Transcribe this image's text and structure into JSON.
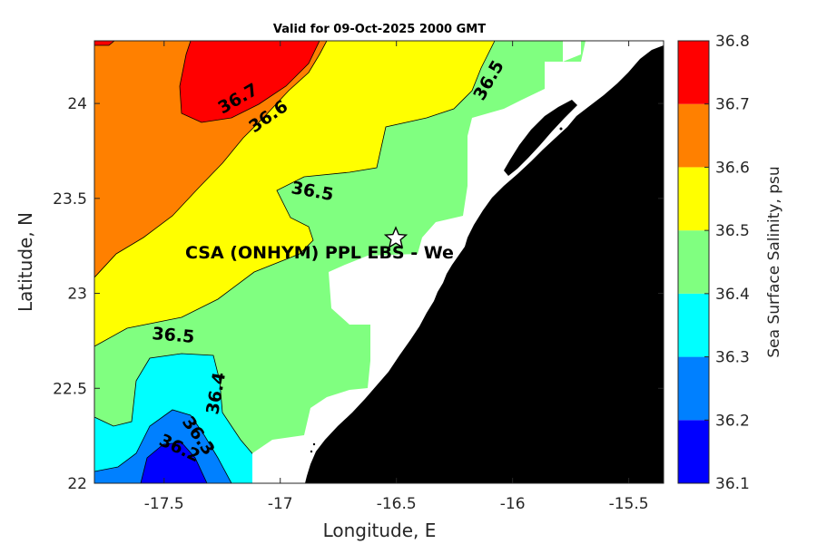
{
  "title": "Valid for 09-Oct-2025 2000 GMT",
  "x_axis": {
    "label": "Longitude, E",
    "range": [
      -17.8,
      -15.35
    ],
    "ticks": [
      "-17.5",
      "-17",
      "-16.5",
      "-16",
      "-15.5"
    ],
    "tick_values": [
      -17.5,
      -17.0,
      -16.5,
      -16.0,
      -15.5
    ]
  },
  "y_axis": {
    "label": "Latitude, N",
    "range": [
      22.0,
      24.33
    ],
    "ticks": [
      "22",
      "22.5",
      "23",
      "23.5",
      "24"
    ],
    "tick_values": [
      22.0,
      22.5,
      23.0,
      23.5,
      24.0
    ]
  },
  "colorbar": {
    "label": "Sea Surface Salinity, psu",
    "levels": [
      "36.1",
      "36.2",
      "36.3",
      "36.4",
      "36.5",
      "36.6",
      "36.7",
      "36.8"
    ],
    "colors": [
      "#0000ff",
      "#0080ff",
      "#00ffff",
      "#80ff80",
      "#ffff00",
      "#ff8000",
      "#ff0000"
    ]
  },
  "contour_labels": [
    "36.7",
    "36.6",
    "36.5",
    "36.5",
    "36.5",
    "36.4",
    "36.3",
    "36.2"
  ],
  "site": {
    "label": "CSA (ONHYM) PPL EBS  - We",
    "marker": "star-icon",
    "lon": -16.48,
    "lat": 23.29
  },
  "colors": {
    "land": "#000000",
    "no_data": "#ffffff",
    "axis": "#262626"
  }
}
